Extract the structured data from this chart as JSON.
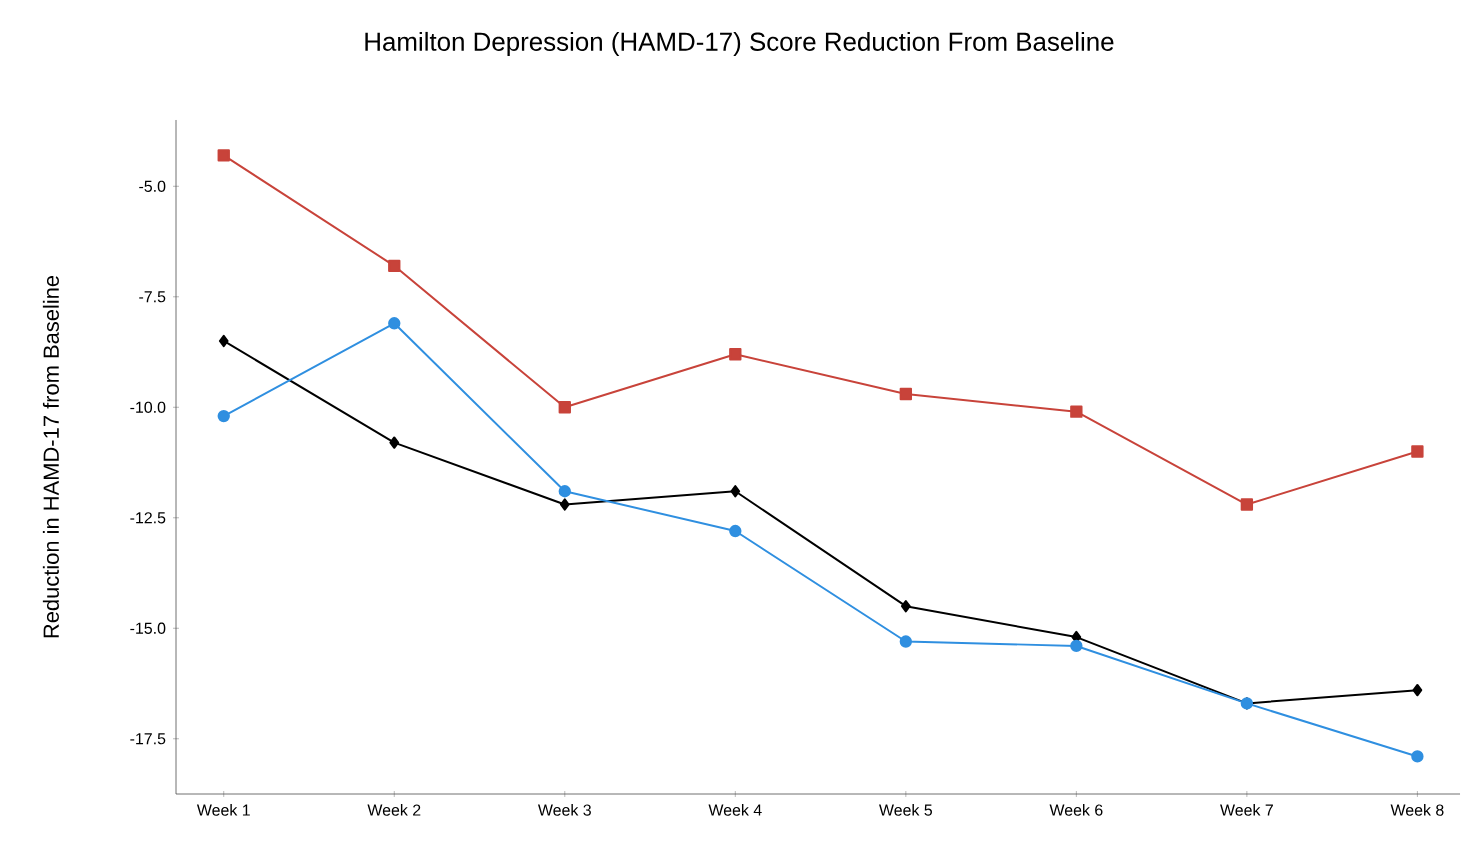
{
  "chart_data": {
    "type": "line",
    "title": "Hamilton Depression (HAMD-17) Score Reduction From Baseline",
    "ylabel": "Reduction in HAMD-17 from Baseline",
    "categories": [
      "Week 1",
      "Week 2",
      "Week 3",
      "Week 4",
      "Week 5",
      "Week 6",
      "Week 7",
      "Week 8"
    ],
    "series": [
      {
        "color": "#c8433a",
        "marker": "square",
        "values": [
          -4.3,
          -6.8,
          -10.0,
          -8.8,
          -9.7,
          -10.1,
          -12.2,
          -11.0
        ]
      },
      {
        "color": "#2f8fe0",
        "marker": "circle",
        "values": [
          -10.2,
          -8.1,
          -11.9,
          -12.8,
          -15.3,
          -15.4,
          -16.7,
          -17.9
        ]
      },
      {
        "color": "#000000",
        "marker": "diamond",
        "values": [
          -8.5,
          -10.8,
          -12.2,
          -11.9,
          -14.5,
          -15.2,
          -16.7,
          -16.4
        ]
      }
    ],
    "ylim": [
      -18.75,
      -3.5
    ],
    "yticks": [
      {
        "value": -5.0,
        "label": "-5.0"
      },
      {
        "value": -7.5,
        "label": "-7.5"
      },
      {
        "value": -10.0,
        "label": "-10.0"
      },
      {
        "value": -12.5,
        "label": "-12.5"
      },
      {
        "value": -15.0,
        "label": "-15.0"
      },
      {
        "value": -17.5,
        "label": "-17.5"
      }
    ],
    "line_style": "solid"
  }
}
